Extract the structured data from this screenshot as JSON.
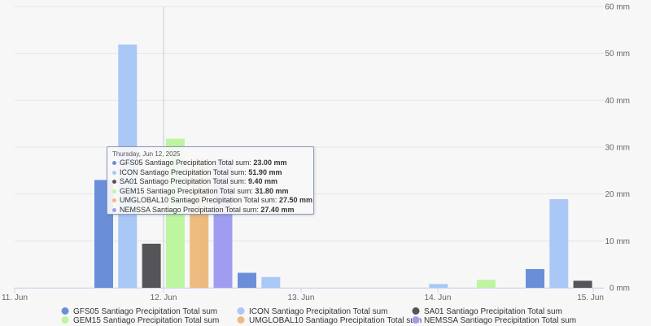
{
  "chart_data": {
    "type": "bar",
    "x_ticks": [
      "11. Jun",
      "12. Jun",
      "13. Jun",
      "14. Jun",
      "15. Jun"
    ],
    "y_ticks": [
      "0 mm",
      "10 mm",
      "20 mm",
      "30 mm",
      "40 mm",
      "50 mm",
      "60 mm"
    ],
    "ylim": [
      0,
      60
    ],
    "y_unit": "mm",
    "grid": true,
    "legend_position": "bottom",
    "series": [
      {
        "name": "GFS05 Santiago Precipitation Total sum",
        "color": "#6a8fd8",
        "values": [
          23.0,
          3.2,
          0,
          4.0
        ]
      },
      {
        "name": "ICON Santiago Precipitation Total sum",
        "color": "#a9c8f5",
        "values": [
          51.9,
          2.3,
          0.8,
          18.9
        ]
      },
      {
        "name": "SA01 Santiago Precipitation Total sum",
        "color": "#555559",
        "values": [
          9.4,
          0,
          0,
          1.5
        ]
      },
      {
        "name": "GEM15 Santiago Precipitation Total sum",
        "color": "#bdf5a0",
        "values": [
          31.8,
          0,
          1.7,
          0
        ]
      },
      {
        "name": "UMGLOBAL10 Santiago Precipitation Total sum",
        "color": "#edbb80",
        "values": [
          27.5,
          0,
          0,
          0
        ]
      },
      {
        "name": "NEMSSA Santiago Precipitation Total sum",
        "color": "#a09cf0",
        "values": [
          27.4,
          0,
          0,
          0
        ]
      }
    ]
  },
  "tooltip": {
    "date": "Thursday, Jun 12, 2025",
    "rows": [
      {
        "label": "GFS05 Santiago Precipitation Total sum:",
        "value": "23.00 mm",
        "color": "#6a8fd8"
      },
      {
        "label": "ICON Santiago Precipitation Total sum:",
        "value": "51.90 mm",
        "color": "#a9c8f5"
      },
      {
        "label": "SA01 Santiago Precipitation Total sum:",
        "value": "9.40 mm",
        "color": "#555559"
      },
      {
        "label": "GEM15 Santiago Precipitation Total sum:",
        "value": "31.80 mm",
        "color": "#bdf5a0"
      },
      {
        "label": "UMGLOBAL10 Santiago Precipitation Total sum:",
        "value": "27.50 mm",
        "color": "#edbb80"
      },
      {
        "label": "NEMSSA Santiago Precipitation Total sum:",
        "value": "27.40 mm",
        "color": "#a09cf0"
      }
    ]
  }
}
